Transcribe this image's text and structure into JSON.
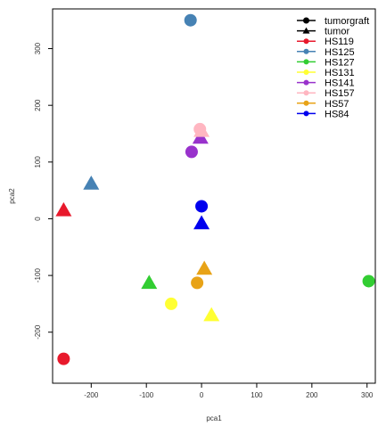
{
  "chart_data": {
    "type": "scatter",
    "xlabel": "pca1",
    "ylabel": "pca2",
    "xlim": [
      -270,
      315
    ],
    "ylim": [
      -290,
      370
    ],
    "x_ticks": [
      -200,
      -100,
      0,
      100,
      200,
      300
    ],
    "y_ticks": [
      -200,
      -100,
      0,
      100,
      200,
      300
    ],
    "x_tick_labels": [
      "-200",
      "-100",
      "0",
      "100",
      "200",
      "300"
    ],
    "y_tick_labels": [
      "-200",
      "-100",
      "0",
      "100",
      "200",
      "300"
    ],
    "grid": false,
    "legend_position": "top-right",
    "legend_shapes": [
      {
        "label": "tumorgraft",
        "shape": "circle"
      },
      {
        "label": "tumor",
        "shape": "triangle"
      }
    ],
    "series": [
      {
        "name": "HS119",
        "color": "#e8192c",
        "points": [
          {
            "x": -250,
            "y": -247,
            "shape": "circle"
          },
          {
            "x": -250,
            "y": 15,
            "shape": "triangle"
          }
        ]
      },
      {
        "name": "HS125",
        "color": "#4682b4",
        "points": [
          {
            "x": -20,
            "y": 350,
            "shape": "circle"
          },
          {
            "x": -200,
            "y": 62,
            "shape": "triangle"
          }
        ]
      },
      {
        "name": "HS127",
        "color": "#32cd32",
        "points": [
          {
            "x": 303,
            "y": -110,
            "shape": "circle"
          },
          {
            "x": -95,
            "y": -113,
            "shape": "triangle"
          }
        ]
      },
      {
        "name": "HS131",
        "color": "#ffff33",
        "points": [
          {
            "x": -55,
            "y": -150,
            "shape": "circle"
          },
          {
            "x": 18,
            "y": -170,
            "shape": "triangle"
          }
        ]
      },
      {
        "name": "HS141",
        "color": "#9932cc",
        "points": [
          {
            "x": -18,
            "y": 118,
            "shape": "circle"
          },
          {
            "x": -2,
            "y": 143,
            "shape": "triangle"
          }
        ]
      },
      {
        "name": "HS157",
        "color": "#ffb6c1",
        "points": [
          {
            "x": -3,
            "y": 158,
            "shape": "circle"
          },
          {
            "x": 0,
            "y": 155,
            "shape": "triangle"
          }
        ]
      },
      {
        "name": "HS57",
        "color": "#e8a317",
        "points": [
          {
            "x": -8,
            "y": -113,
            "shape": "circle"
          },
          {
            "x": 5,
            "y": -88,
            "shape": "triangle"
          }
        ]
      },
      {
        "name": "HS84",
        "color": "#0000ee",
        "points": [
          {
            "x": 0,
            "y": 22,
            "shape": "circle"
          },
          {
            "x": 0,
            "y": -8,
            "shape": "triangle"
          }
        ]
      }
    ]
  }
}
